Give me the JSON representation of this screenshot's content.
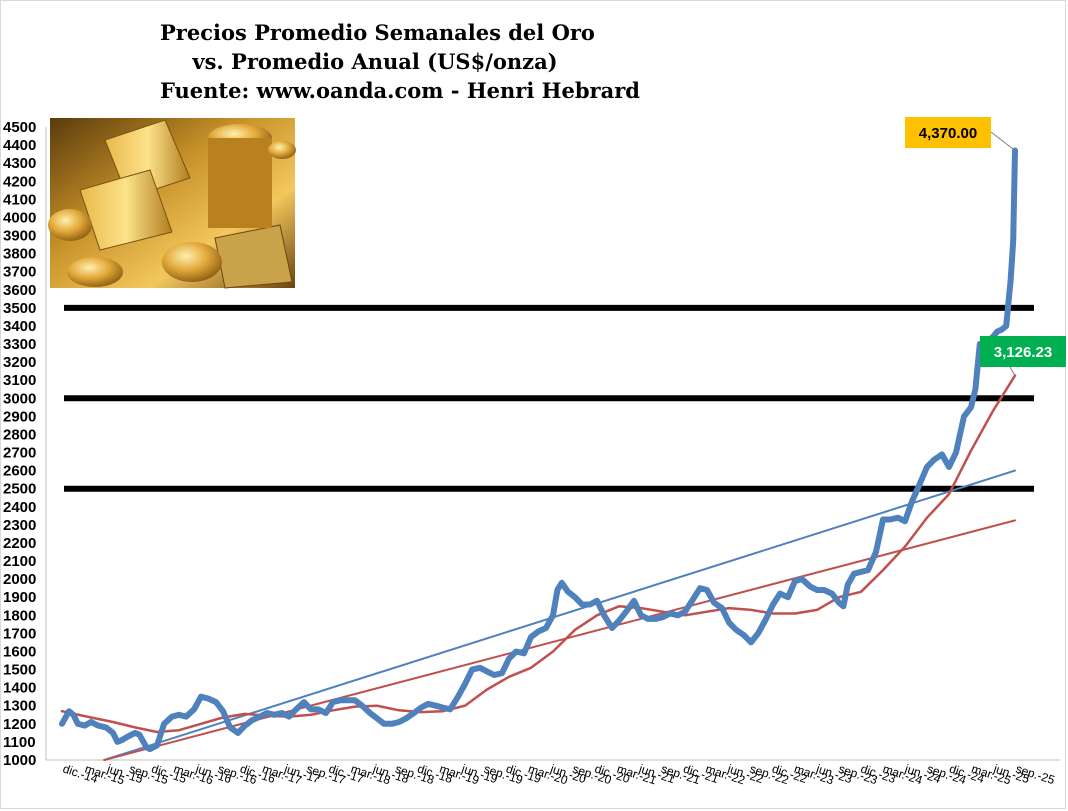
{
  "title_lines": [
    "Precios Promedio Semanales del Oro",
    "vs. Promedio Anual (US$/onza)",
    "Fuente: www.oanda.com - Henri Hebrard"
  ],
  "colors": {
    "weekly": "#4f81bd",
    "annual_avg": "#c0504d",
    "trend_blue": "#4f81bd",
    "trend_red": "#c0504d",
    "reference_lines": "#000000",
    "callout_latest_bg": "#ffc000",
    "callout_avg_bg": "#00b050"
  },
  "chart_data": {
    "type": "line",
    "title": "Precios Promedio Semanales del Oro vs. Promedio Anual (US$/onza)",
    "ylim": [
      1000,
      4500
    ],
    "yticks": [
      1000,
      1100,
      1200,
      1300,
      1400,
      1500,
      1600,
      1700,
      1800,
      1900,
      2000,
      2100,
      2200,
      2300,
      2400,
      2500,
      2600,
      2700,
      2800,
      2900,
      3000,
      3100,
      3200,
      3300,
      3400,
      3500,
      3600,
      3700,
      3800,
      3900,
      4000,
      4100,
      4200,
      4300,
      4400,
      4500
    ],
    "xlim": [
      2014.92,
      2025.75
    ],
    "xtick_labels": [
      "dic.-14",
      "mar.-15",
      "jun.-15",
      "sep.-15",
      "dic.-15",
      "mar.-16",
      "jun.-16",
      "sep.-16",
      "dic.-16",
      "mar.-17",
      "jun.-17",
      "sep.-17",
      "dic.-17",
      "mar.-18",
      "jun.-18",
      "sep.-18",
      "dic.-18",
      "mar.-19",
      "jun.-19",
      "sep.-19",
      "dic.-19",
      "mar.-20",
      "jun.-20",
      "sep.-20",
      "dic.-20",
      "mar.-21",
      "jun.-21",
      "sep.-21",
      "dic.-21",
      "mar.-22",
      "jun.-22",
      "sep.-22",
      "dic.-22",
      "mar.-23",
      "jun.-23",
      "sep.-23",
      "dic.-23",
      "mar.-24",
      "jun.-24",
      "sep.-24",
      "dic.-24",
      "mar.-25",
      "jun.-25",
      "sep.-25"
    ],
    "grid": false,
    "legend": "none",
    "reference_lines": [
      3500,
      3000,
      2500
    ],
    "series": [
      {
        "name": "",
        "role": "weekly",
        "x": [
          2014.92,
          2015.0,
          2015.05,
          2015.1,
          2015.18,
          2015.25,
          2015.33,
          2015.42,
          2015.5,
          2015.55,
          2015.6,
          2015.67,
          2015.75,
          2015.8,
          2015.88,
          2015.92,
          2016.0,
          2016.08,
          2016.17,
          2016.25,
          2016.33,
          2016.42,
          2016.5,
          2016.58,
          2016.67,
          2016.75,
          2016.83,
          2016.92,
          2017.0,
          2017.08,
          2017.17,
          2017.25,
          2017.33,
          2017.42,
          2017.5,
          2017.58,
          2017.67,
          2017.75,
          2017.83,
          2017.92,
          2018.0,
          2018.08,
          2018.17,
          2018.25,
          2018.33,
          2018.42,
          2018.5,
          2018.58,
          2018.67,
          2018.75,
          2018.83,
          2018.92,
          2019.0,
          2019.08,
          2019.17,
          2019.25,
          2019.33,
          2019.42,
          2019.5,
          2019.58,
          2019.67,
          2019.75,
          2019.83,
          2019.92,
          2020.0,
          2020.08,
          2020.17,
          2020.25,
          2020.33,
          2020.42,
          2020.5,
          2020.55,
          2020.6,
          2020.67,
          2020.75,
          2020.83,
          2020.92,
          2021.0,
          2021.08,
          2021.17,
          2021.25,
          2021.33,
          2021.42,
          2021.5,
          2021.58,
          2021.67,
          2021.75,
          2021.83,
          2021.92,
          2022.0,
          2022.08,
          2022.17,
          2022.25,
          2022.33,
          2022.42,
          2022.5,
          2022.58,
          2022.67,
          2022.75,
          2022.83,
          2022.92,
          2023.0,
          2023.08,
          2023.17,
          2023.25,
          2023.33,
          2023.42,
          2023.5,
          2023.58,
          2023.67,
          2023.75,
          2023.8,
          2023.85,
          2023.92,
          2024.0,
          2024.08,
          2024.17,
          2024.25,
          2024.33,
          2024.42,
          2024.5,
          2024.58,
          2024.67,
          2024.75,
          2024.83,
          2024.92,
          2025.0,
          2025.08,
          2025.17,
          2025.25,
          2025.3,
          2025.35,
          2025.42,
          2025.5,
          2025.55,
          2025.6,
          2025.65,
          2025.7,
          2025.73,
          2025.75
        ],
        "y": [
          1200,
          1270,
          1250,
          1200,
          1190,
          1210,
          1190,
          1180,
          1150,
          1100,
          1110,
          1130,
          1150,
          1140,
          1070,
          1060,
          1080,
          1200,
          1240,
          1250,
          1240,
          1280,
          1350,
          1340,
          1320,
          1270,
          1180,
          1150,
          1190,
          1220,
          1240,
          1260,
          1250,
          1260,
          1240,
          1280,
          1320,
          1280,
          1280,
          1260,
          1320,
          1330,
          1330,
          1330,
          1300,
          1260,
          1230,
          1200,
          1200,
          1210,
          1230,
          1260,
          1290,
          1310,
          1300,
          1290,
          1280,
          1350,
          1420,
          1500,
          1510,
          1490,
          1470,
          1480,
          1560,
          1600,
          1590,
          1680,
          1710,
          1730,
          1800,
          1940,
          1980,
          1930,
          1900,
          1860,
          1860,
          1880,
          1800,
          1730,
          1770,
          1820,
          1880,
          1800,
          1780,
          1780,
          1790,
          1810,
          1800,
          1820,
          1880,
          1950,
          1940,
          1870,
          1840,
          1760,
          1720,
          1690,
          1650,
          1700,
          1780,
          1860,
          1920,
          1900,
          1990,
          2000,
          1960,
          1940,
          1940,
          1920,
          1870,
          1850,
          1970,
          2030,
          2040,
          2050,
          2150,
          2330,
          2330,
          2340,
          2320,
          2430,
          2530,
          2620,
          2660,
          2690,
          2620,
          2700,
          2900,
          2950,
          3050,
          3300,
          3310,
          3340,
          3370,
          3380,
          3400,
          3650,
          3870,
          4370
        ]
      },
      {
        "name": "",
        "role": "annual_avg",
        "x": [
          2014.92,
          2015.25,
          2015.5,
          2015.75,
          2016.0,
          2016.25,
          2016.5,
          2016.75,
          2017.0,
          2017.25,
          2017.5,
          2017.75,
          2018.0,
          2018.25,
          2018.5,
          2018.75,
          2019.0,
          2019.25,
          2019.5,
          2019.75,
          2020.0,
          2020.25,
          2020.5,
          2020.75,
          2021.0,
          2021.25,
          2021.5,
          2021.75,
          2022.0,
          2022.25,
          2022.5,
          2022.75,
          2023.0,
          2023.25,
          2023.5,
          2023.75,
          2024.0,
          2024.25,
          2024.5,
          2024.75,
          2025.0,
          2025.25,
          2025.5,
          2025.75
        ],
        "y": [
          1270,
          1235,
          1210,
          1180,
          1155,
          1165,
          1200,
          1235,
          1255,
          1245,
          1240,
          1250,
          1275,
          1295,
          1300,
          1275,
          1265,
          1270,
          1300,
          1390,
          1460,
          1510,
          1600,
          1720,
          1800,
          1850,
          1840,
          1820,
          1800,
          1820,
          1840,
          1830,
          1810,
          1810,
          1830,
          1900,
          1930,
          2050,
          2180,
          2340,
          2470,
          2710,
          2930,
          3126.23
        ]
      },
      {
        "name": "",
        "role": "trend_blue",
        "x": [
          2015.4,
          2025.75
        ],
        "y": [
          1000,
          2600
        ]
      },
      {
        "name": "",
        "role": "trend_red",
        "x": [
          2015.4,
          2025.75
        ],
        "y": [
          1000,
          2325
        ]
      }
    ],
    "annotations": [
      {
        "label": "4,370.00",
        "value": 4370.0,
        "x": 2025.75
      },
      {
        "label": "3,126.23",
        "value": 3126.23,
        "x": 2025.75
      }
    ]
  },
  "image": {
    "icon": "gold-bars-and-coins-photo"
  }
}
